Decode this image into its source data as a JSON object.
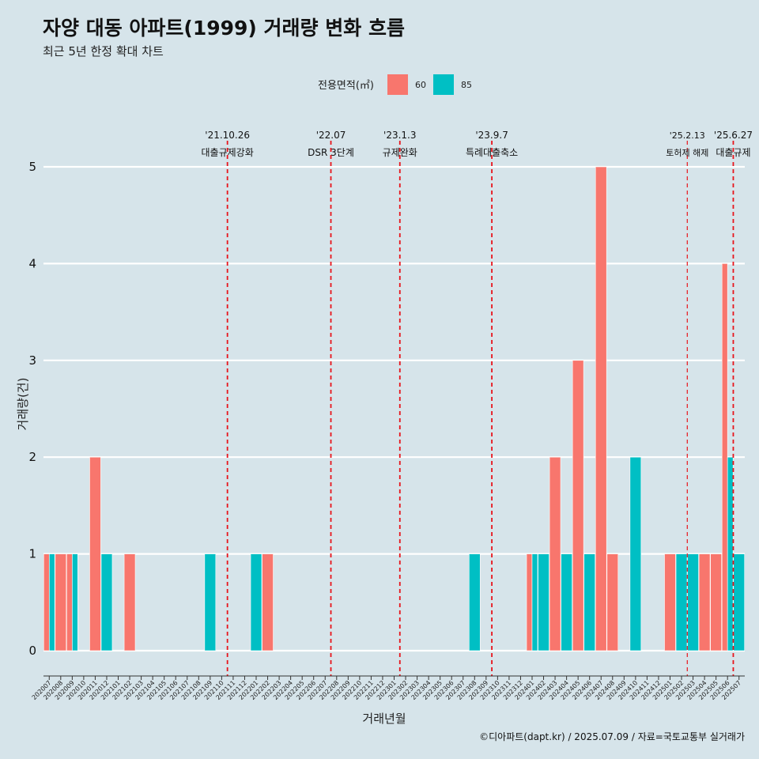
{
  "page": {
    "title": "자양 대동 아파트(1999) 거래량 변화 흐름",
    "subtitle": "최근 5년 한정 확대 차트",
    "caption": "©디아파트(dapt.kr) / 2025.07.09 / 자료=국토교통부 실거래가"
  },
  "chart_data": {
    "type": "bar",
    "xlabel": "거래년월",
    "ylabel": "거래량(건)",
    "ylim": [
      0,
      5
    ],
    "yticks": [
      0,
      1,
      2,
      3,
      4,
      5
    ],
    "grid": true,
    "legend_position": "top",
    "legend_title": "전용면적(㎡)",
    "colors": {
      "60": "#f8766d",
      "85": "#00bfc4"
    },
    "categories": [
      "202007",
      "202008",
      "202009",
      "202010",
      "202011",
      "202012",
      "202101",
      "202102",
      "202103",
      "202104",
      "202105",
      "202106",
      "202107",
      "202108",
      "202109",
      "202110",
      "202111",
      "202112",
      "202201",
      "202202",
      "202203",
      "202204",
      "202205",
      "202206",
      "202207",
      "202208",
      "202209",
      "202210",
      "202211",
      "202212",
      "202301",
      "202302",
      "202303",
      "202304",
      "202305",
      "202306",
      "202307",
      "202308",
      "202309",
      "202310",
      "202311",
      "202312",
      "202401",
      "202402",
      "202403",
      "202404",
      "202405",
      "202406",
      "202407",
      "202408",
      "202409",
      "202410",
      "202411",
      "202412",
      "202501",
      "202502",
      "202503",
      "202504",
      "202505",
      "202506",
      "202507"
    ],
    "series": [
      {
        "name": "60",
        "color": "#f8766d",
        "values": [
          1,
          1,
          1,
          0,
          2,
          0,
          0,
          1,
          0,
          0,
          0,
          0,
          0,
          0,
          0,
          0,
          0,
          0,
          0,
          1,
          0,
          0,
          0,
          0,
          0,
          0,
          0,
          0,
          0,
          0,
          0,
          0,
          0,
          0,
          0,
          0,
          0,
          0,
          0,
          0,
          0,
          0,
          1,
          0,
          2,
          0,
          3,
          0,
          5,
          1,
          0,
          0,
          0,
          0,
          1,
          0,
          0,
          1,
          1,
          4,
          0
        ]
      },
      {
        "name": "85",
        "color": "#00bfc4",
        "values": [
          1,
          0,
          1,
          0,
          0,
          1,
          0,
          0,
          0,
          0,
          0,
          0,
          0,
          0,
          1,
          0,
          0,
          0,
          1,
          0,
          0,
          0,
          0,
          0,
          0,
          0,
          0,
          0,
          0,
          0,
          0,
          0,
          0,
          0,
          0,
          0,
          0,
          1,
          0,
          0,
          0,
          0,
          1,
          1,
          0,
          1,
          0,
          1,
          0,
          0,
          0,
          2,
          0,
          0,
          0,
          1,
          1,
          0,
          0,
          2,
          1
        ]
      }
    ],
    "events": [
      {
        "date": "'21.10.26",
        "label": "대출규제강화",
        "at": "202110",
        "small": false
      },
      {
        "date": "'22.07",
        "label": "DSR 3단계",
        "at": "202207",
        "small": false
      },
      {
        "date": "'23.1.3",
        "label": "규제완화",
        "at": "202301",
        "small": false
      },
      {
        "date": "'23.9.7",
        "label": "특례대출축소",
        "at": "202309",
        "small": false
      },
      {
        "date": "'25.2.13",
        "label": "토허제 해제",
        "at": "202502",
        "small": true
      },
      {
        "date": "'25.6.27",
        "label": "대출규제",
        "at": "202506",
        "small": false
      }
    ]
  }
}
